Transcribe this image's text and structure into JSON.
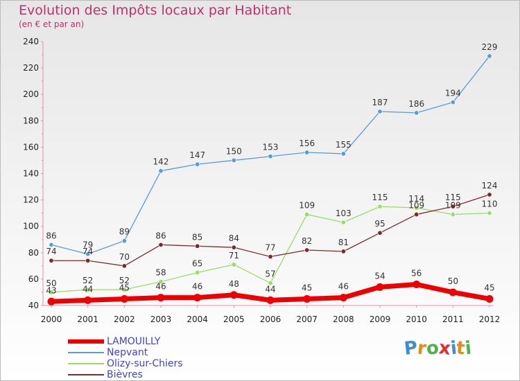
{
  "header": {
    "title": "Evolution des Impôts locaux par Habitant",
    "subtitle": "(en € et par an)"
  },
  "logo": {
    "text": "Proxiti",
    "letter_colors": [
      "#3b8fd6",
      "#e88a1a",
      "#4ab54a",
      "#e03030",
      "#3b8fd6",
      "#e88a1a",
      "#4ab54a"
    ]
  },
  "chart_data": {
    "type": "line",
    "x": [
      "2000",
      "2001",
      "2002",
      "2003",
      "2004",
      "2005",
      "2006",
      "2007",
      "2008",
      "2009",
      "2010",
      "2011",
      "2012"
    ],
    "ylim": [
      40,
      240
    ],
    "yticks": [
      "40",
      "60",
      "80",
      "100",
      "120",
      "140",
      "160",
      "180",
      "200",
      "220",
      "240"
    ],
    "grid": false,
    "legend": "bottom-left",
    "series": [
      {
        "name": "LAMOUILLY",
        "color": "#ee0000",
        "values": [
          43,
          44,
          45,
          46,
          46,
          48,
          44,
          45,
          46,
          54,
          56,
          50,
          45
        ],
        "labels": [
          "43",
          "44",
          "45",
          "46",
          "46",
          "48",
          "44",
          "45",
          "46",
          "54",
          "56",
          "50",
          "45"
        ]
      },
      {
        "name": "Nepvant",
        "color": "#5b9bd5",
        "values": [
          86,
          79,
          89,
          142,
          147,
          150,
          153,
          156,
          155,
          187,
          186,
          194,
          229
        ],
        "labels": [
          "86",
          "79",
          "89",
          "142",
          "147",
          "150",
          "153",
          "156",
          "155",
          "187",
          "186",
          "194",
          "229"
        ]
      },
      {
        "name": "Olizy-sur-Chiers",
        "color": "#99dd66",
        "values": [
          50,
          52,
          52,
          58,
          65,
          71,
          57,
          109,
          103,
          115,
          114,
          109,
          110
        ],
        "labels": [
          "50",
          "52",
          "52",
          "58",
          "65",
          "71",
          "57",
          "109",
          "103",
          "115",
          "114",
          "109",
          "110"
        ]
      },
      {
        "name": "Bièvres",
        "color": "#7a2a2a",
        "values": [
          74,
          74,
          70,
          86,
          85,
          84,
          77,
          82,
          81,
          95,
          109,
          115,
          124
        ],
        "labels": [
          "74",
          "74",
          "70",
          "86",
          "85",
          "84",
          "77",
          "82",
          "81",
          "95",
          "109",
          "115",
          "124"
        ]
      }
    ]
  }
}
